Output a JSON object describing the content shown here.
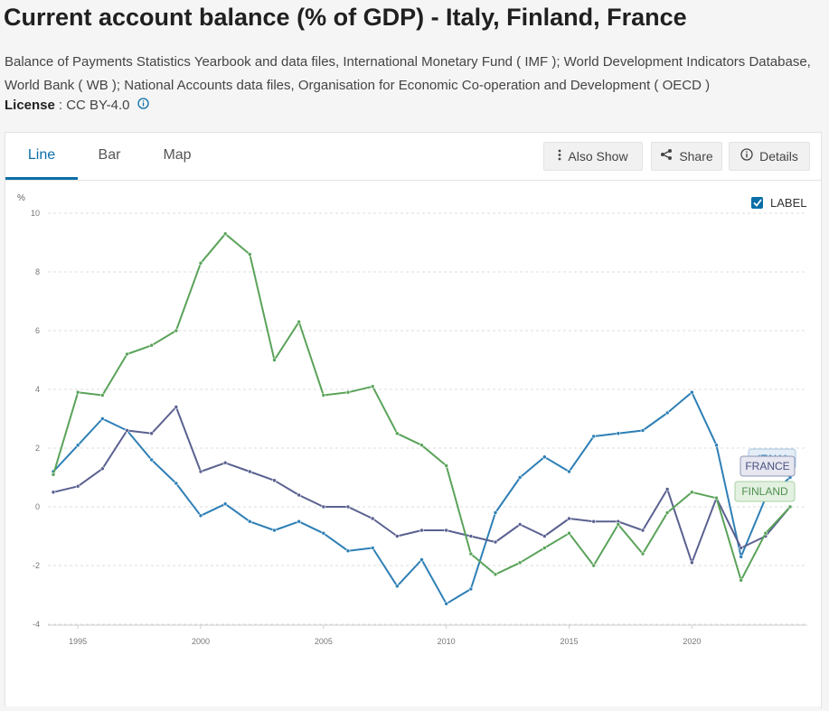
{
  "page": {
    "title": "Current account balance (% of GDP) - Italy, Finland, France",
    "sources": "Balance of Payments Statistics Yearbook and data files, International Monetary Fund ( IMF ); World Development Indicators Database, World Bank ( WB ); National Accounts data files, Organisation for Economic Co-operation and Development ( OECD )",
    "license_label": "License",
    "license_value": ": CC BY-4.0"
  },
  "tabs": [
    {
      "label": "Line",
      "active": true
    },
    {
      "label": "Bar",
      "active": false
    },
    {
      "label": "Map",
      "active": false
    }
  ],
  "toolbar": {
    "also_show": "Also Show",
    "share": "Share",
    "details": "Details"
  },
  "label_toggle": {
    "label": "LABEL",
    "checked": true
  },
  "colors": {
    "accent": "#0b6ea8",
    "italy": "#2e7fb5",
    "france": "#5a6190",
    "finland": "#5aa35a"
  },
  "chart_data": {
    "type": "line",
    "ylabel": "%",
    "ylim": [
      -4,
      10
    ],
    "yticks": [
      "10",
      "8",
      "6",
      "4",
      "2",
      "0",
      "-2",
      "-4"
    ],
    "xticks": [
      "1995",
      "2000",
      "2005",
      "2010",
      "2015",
      "2020"
    ],
    "grid": true,
    "x": [
      1994,
      1995,
      1996,
      1997,
      1998,
      1999,
      2000,
      2001,
      2002,
      2003,
      2004,
      2005,
      2006,
      2007,
      2008,
      2009,
      2010,
      2011,
      2012,
      2013,
      2014,
      2015,
      2016,
      2017,
      2018,
      2019,
      2020,
      2021,
      2022,
      2023,
      2024
    ],
    "series": [
      {
        "name": "ITALY",
        "color": "#2e7fb5",
        "values": [
          1.2,
          2.1,
          3.0,
          2.6,
          1.6,
          0.8,
          -0.3,
          0.1,
          -0.5,
          -0.8,
          -0.5,
          -0.9,
          -1.5,
          -1.4,
          -2.7,
          -1.8,
          -3.3,
          -2.8,
          -0.2,
          1.0,
          1.7,
          1.2,
          2.4,
          2.5,
          2.6,
          3.2,
          3.9,
          2.1,
          -1.7,
          0.3,
          1.0
        ]
      },
      {
        "name": "FRANCE",
        "color": "#5a6190",
        "values": [
          0.5,
          0.7,
          1.3,
          2.6,
          2.5,
          3.4,
          1.2,
          1.5,
          1.2,
          0.9,
          0.4,
          -0.0,
          0.0,
          -0.4,
          -1.0,
          -0.8,
          -0.8,
          -1.0,
          -1.2,
          -0.6,
          -1.0,
          -0.4,
          -0.5,
          -0.5,
          -0.8,
          0.6,
          -1.9,
          0.3,
          -1.4,
          -1.0,
          0.0
        ]
      },
      {
        "name": "FINLAND",
        "color": "#5aa35a",
        "values": [
          1.1,
          3.9,
          3.8,
          5.2,
          5.5,
          6.0,
          8.3,
          9.3,
          8.6,
          5.0,
          6.3,
          3.8,
          3.9,
          4.1,
          2.5,
          2.1,
          1.4,
          -1.6,
          -2.3,
          -1.9,
          -1.4,
          -0.9,
          -2.0,
          -0.6,
          -1.6,
          -0.2,
          0.5,
          0.3,
          -2.5,
          -0.9,
          0.0
        ]
      }
    ]
  }
}
